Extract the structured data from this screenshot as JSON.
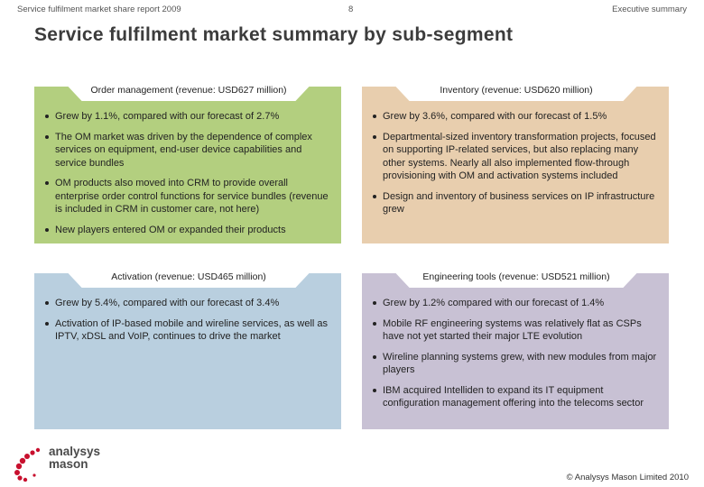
{
  "header": {
    "left": "Service fulfilment market share report 2009",
    "page": "8",
    "right": "Executive summary"
  },
  "title": "Service fulfilment market summary by sub-segment",
  "panels": {
    "om": {
      "heading": "Order management (revenue: USD627 million)",
      "color": "#b3cf7f",
      "bullets": [
        "Grew by 1.1%, compared with our forecast of 2.7%",
        "The OM market was driven by the dependence of complex services on equipment, end-user device capabilities and service bundles",
        "OM products also moved into CRM to provide overall enterprise order control functions for service bundles (revenue is included in CRM in customer care, not here)",
        "New players entered OM or expanded their products"
      ]
    },
    "inventory": {
      "heading": "Inventory (revenue: USD620 million)",
      "color": "#e8ceae",
      "bullets": [
        "Grew by 3.6%, compared with our forecast of 1.5%",
        "Departmental-sized inventory transformation projects, focused on supporting IP-related services, but also replacing many other systems. Nearly all also implemented flow-through provisioning with OM and activation systems included",
        "Design and inventory of business services on IP infrastructure grew"
      ]
    },
    "activation": {
      "heading": "Activation (revenue: USD465 million)",
      "color": "#b9cfdf",
      "bullets": [
        "Grew by 5.4%, compared with our forecast of 3.4%",
        "Activation of IP-based mobile and wireline services, as well as IPTV, xDSL and VoIP, continues to drive the market"
      ]
    },
    "engineering": {
      "heading": "Engineering tools (revenue: USD521 million)",
      "color": "#c8c1d4",
      "bullets": [
        "Grew by 1.2% compared with our forecast of 1.4%",
        "Mobile RF engineering systems was relatively flat as CSPs have not yet started their major LTE evolution",
        "Wireline planning systems grew, with new modules from major players",
        "IBM acquired Intelliden to expand its IT equipment configuration management offering into the telecoms sector"
      ]
    }
  },
  "logo": {
    "line1": "analysys",
    "line2": "mason",
    "accent": "#c8102e"
  },
  "footer": {
    "copyright": "© Analysys Mason Limited 2010"
  }
}
